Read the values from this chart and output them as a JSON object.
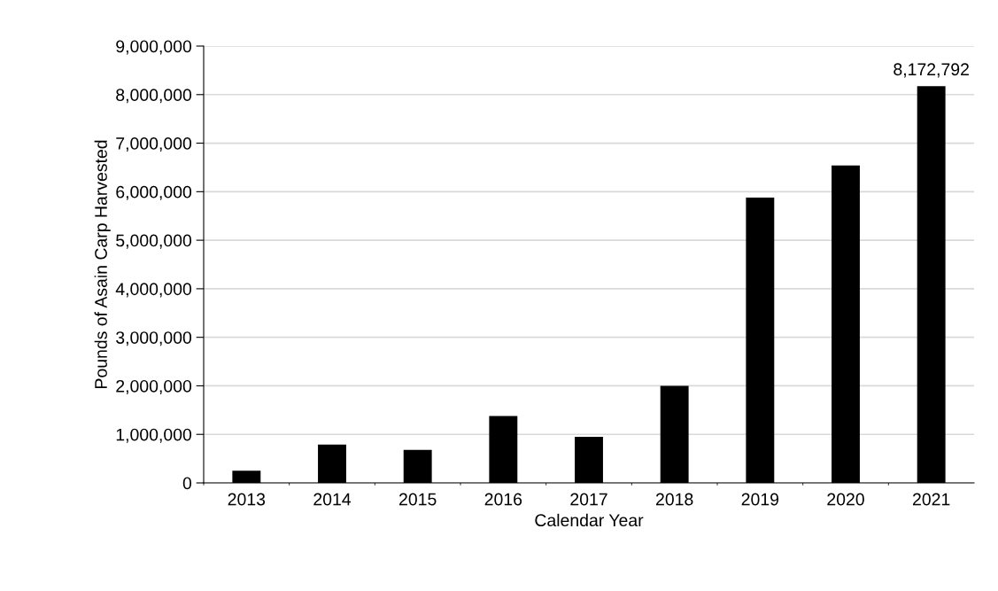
{
  "chart_data": {
    "type": "bar",
    "xlabel": "Calendar Year",
    "ylabel": "Pounds of Asain Carp Harvested",
    "categories": [
      "2013",
      "2014",
      "2015",
      "2016",
      "2017",
      "2018",
      "2019",
      "2020",
      "2021"
    ],
    "values": [
      250000,
      790000,
      680000,
      1380000,
      950000,
      2000000,
      5880000,
      6540000,
      8172792
    ],
    "value_labels": [
      null,
      null,
      null,
      null,
      null,
      null,
      null,
      null,
      "8,172,792"
    ],
    "color": "#000000",
    "ylim": [
      0,
      9000000
    ],
    "yticks": [
      {
        "value": 0,
        "label": "0"
      },
      {
        "value": 1000000,
        "label": "1,000,000"
      },
      {
        "value": 2000000,
        "label": "2,000,000"
      },
      {
        "value": 3000000,
        "label": "3,000,000"
      },
      {
        "value": 4000000,
        "label": "4,000,000"
      },
      {
        "value": 5000000,
        "label": "5,000,000"
      },
      {
        "value": 6000000,
        "label": "6,000,000"
      },
      {
        "value": 7000000,
        "label": "7,000,000"
      },
      {
        "value": 8000000,
        "label": "8,000,000"
      },
      {
        "value": 9000000,
        "label": "9,000,000"
      }
    ],
    "grid": "y",
    "legend": false
  }
}
